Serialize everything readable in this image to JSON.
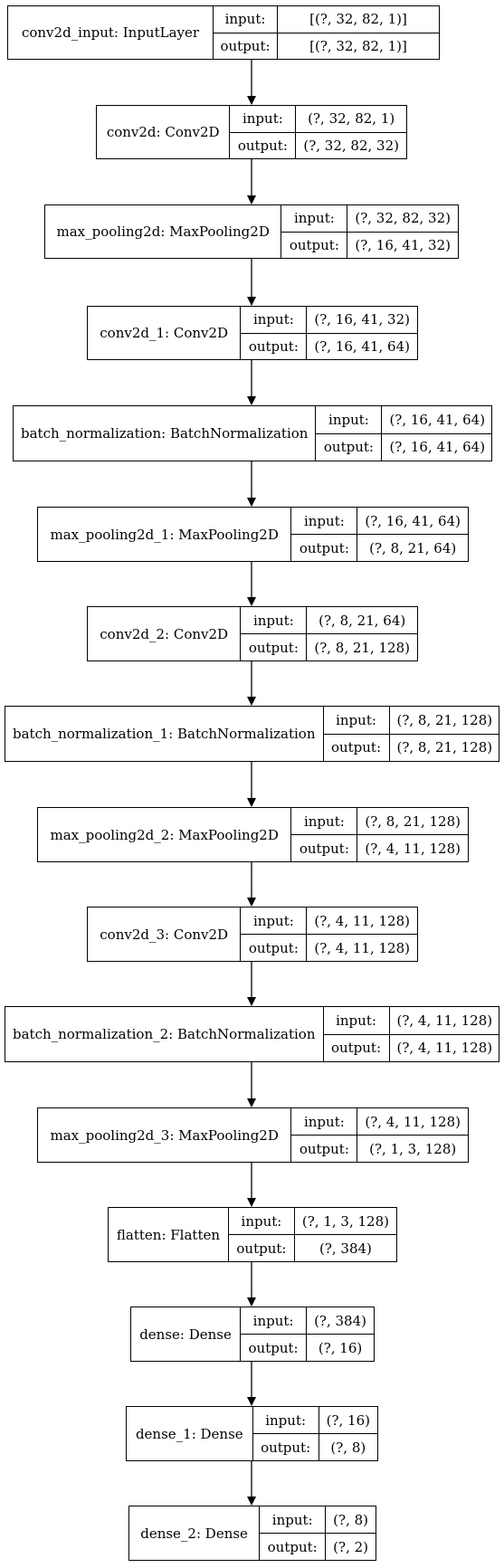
{
  "labels": {
    "input": "input:",
    "output": "output:"
  },
  "layers": [
    {
      "name": "conv2d_input: InputLayer",
      "input": "[(?, 32, 82, 1)]",
      "output": "[(?, 32, 82, 1)]"
    },
    {
      "name": "conv2d: Conv2D",
      "input": "(?, 32, 82, 1)",
      "output": "(?, 32, 82, 32)"
    },
    {
      "name": "max_pooling2d: MaxPooling2D",
      "input": "(?, 32, 82, 32)",
      "output": "(?, 16, 41, 32)"
    },
    {
      "name": "conv2d_1: Conv2D",
      "input": "(?, 16, 41, 32)",
      "output": "(?, 16, 41, 64)"
    },
    {
      "name": "batch_normalization: BatchNormalization",
      "input": "(?, 16, 41, 64)",
      "output": "(?, 16, 41, 64)"
    },
    {
      "name": "max_pooling2d_1: MaxPooling2D",
      "input": "(?, 16, 41, 64)",
      "output": "(?, 8, 21, 64)"
    },
    {
      "name": "conv2d_2: Conv2D",
      "input": "(?, 8, 21, 64)",
      "output": "(?, 8, 21, 128)"
    },
    {
      "name": "batch_normalization_1: BatchNormalization",
      "input": "(?, 8, 21, 128)",
      "output": "(?, 8, 21, 128)"
    },
    {
      "name": "max_pooling2d_2: MaxPooling2D",
      "input": "(?, 8, 21, 128)",
      "output": "(?, 4, 11, 128)"
    },
    {
      "name": "conv2d_3: Conv2D",
      "input": "(?, 4, 11, 128)",
      "output": "(?, 4, 11, 128)"
    },
    {
      "name": "batch_normalization_2: BatchNormalization",
      "input": "(?, 4, 11, 128)",
      "output": "(?, 4, 11, 128)"
    },
    {
      "name": "max_pooling2d_3: MaxPooling2D",
      "input": "(?, 4, 11, 128)",
      "output": "(?, 1, 3, 128)"
    },
    {
      "name": "flatten: Flatten",
      "input": "(?, 1, 3, 128)",
      "output": "(?, 384)"
    },
    {
      "name": "dense: Dense",
      "input": "(?, 384)",
      "output": "(?, 16)"
    },
    {
      "name": "dense_1: Dense",
      "input": "(?, 16)",
      "output": "(?, 8)"
    },
    {
      "name": "dense_2: Dense",
      "input": "(?, 8)",
      "output": "(?, 2)"
    }
  ]
}
